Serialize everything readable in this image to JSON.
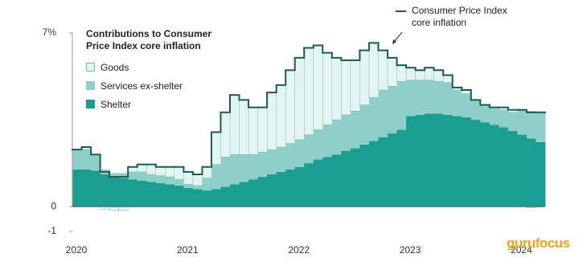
{
  "chart_data": {
    "type": "step-area",
    "title": "Contributions to Consumer Price Index core inflation",
    "categories": [
      "2020",
      null,
      null,
      null,
      null,
      null,
      null,
      null,
      null,
      null,
      null,
      null,
      "2021",
      null,
      null,
      null,
      null,
      null,
      null,
      null,
      null,
      null,
      null,
      null,
      "2022",
      null,
      null,
      null,
      null,
      null,
      null,
      null,
      null,
      null,
      null,
      null,
      "2023",
      null,
      null,
      null,
      null,
      null,
      null,
      null,
      null,
      null,
      null,
      null,
      "2024",
      null,
      null
    ],
    "series": [
      {
        "name": "Goods",
        "color": "#e4f4f1",
        "values": [
          0,
          0.1,
          0.05,
          -0.1,
          -0.15,
          -0.15,
          0.2,
          0.3,
          0.4,
          0.35,
          0.4,
          0.5,
          0.5,
          0.45,
          0.45,
          1.3,
          1.8,
          2.4,
          2.2,
          1.9,
          1.8,
          2.3,
          2.5,
          2.95,
          3.3,
          3.5,
          3.4,
          2.9,
          2.5,
          2.2,
          2.05,
          2.2,
          2.2,
          1.6,
          1.15,
          0.65,
          0.5,
          0.4,
          0.5,
          0.45,
          0.3,
          0.1,
          0.15,
          0,
          0,
          0.05,
          0.1,
          0.1,
          0,
          -0.05,
          0
        ]
      },
      {
        "name": "Services ex-shelter",
        "color": "#8ed0c9",
        "values": [
          0.8,
          0.8,
          0.6,
          0.2,
          0.15,
          0.2,
          0.3,
          0.35,
          0.3,
          0.3,
          0.3,
          0.25,
          0.15,
          0.15,
          0.5,
          1.0,
          1.2,
          1.2,
          1.1,
          1.0,
          1.0,
          1.0,
          1.0,
          1.05,
          1.1,
          1.15,
          1.2,
          1.3,
          1.4,
          1.45,
          1.5,
          1.6,
          1.75,
          1.9,
          1.9,
          1.95,
          1.45,
          1.4,
          1.35,
          1.3,
          1.3,
          1.05,
          0.95,
          0.8,
          0.7,
          0.65,
          0.7,
          0.75,
          1.0,
          1.1,
          1.2
        ]
      },
      {
        "name": "Shelter",
        "color": "#1b9e92",
        "values": [
          1.5,
          1.5,
          1.45,
          1.3,
          1.2,
          1.15,
          1.1,
          1.05,
          1.0,
          0.95,
          0.9,
          0.85,
          0.75,
          0.7,
          0.65,
          0.7,
          0.8,
          0.9,
          1.0,
          1.1,
          1.2,
          1.3,
          1.4,
          1.5,
          1.6,
          1.75,
          1.9,
          2.0,
          2.1,
          2.25,
          2.35,
          2.5,
          2.65,
          2.8,
          2.95,
          3.1,
          3.65,
          3.7,
          3.75,
          3.75,
          3.7,
          3.65,
          3.6,
          3.5,
          3.4,
          3.3,
          3.2,
          3.05,
          2.9,
          2.75,
          2.6
        ]
      }
    ],
    "line": {
      "name": "Consumer Price Index core inflation",
      "color": "#1a5c55",
      "values": [
        2.3,
        2.4,
        2.1,
        1.4,
        1.2,
        1.2,
        1.6,
        1.7,
        1.7,
        1.6,
        1.6,
        1.6,
        1.4,
        1.3,
        1.6,
        3.0,
        3.8,
        4.5,
        4.3,
        4.0,
        4.0,
        4.6,
        4.9,
        5.5,
        6.0,
        6.4,
        6.5,
        6.2,
        6.0,
        5.9,
        5.9,
        6.3,
        6.6,
        6.3,
        6.0,
        5.7,
        5.6,
        5.5,
        5.6,
        5.5,
        5.3,
        4.8,
        4.7,
        4.3,
        4.1,
        4.0,
        4.0,
        3.9,
        3.9,
        3.8,
        3.8
      ]
    },
    "ylim": [
      -1,
      7
    ],
    "yticks": [
      -1,
      0,
      {
        "value": 7,
        "label": "7%"
      }
    ],
    "watermark": "gurufocus"
  }
}
